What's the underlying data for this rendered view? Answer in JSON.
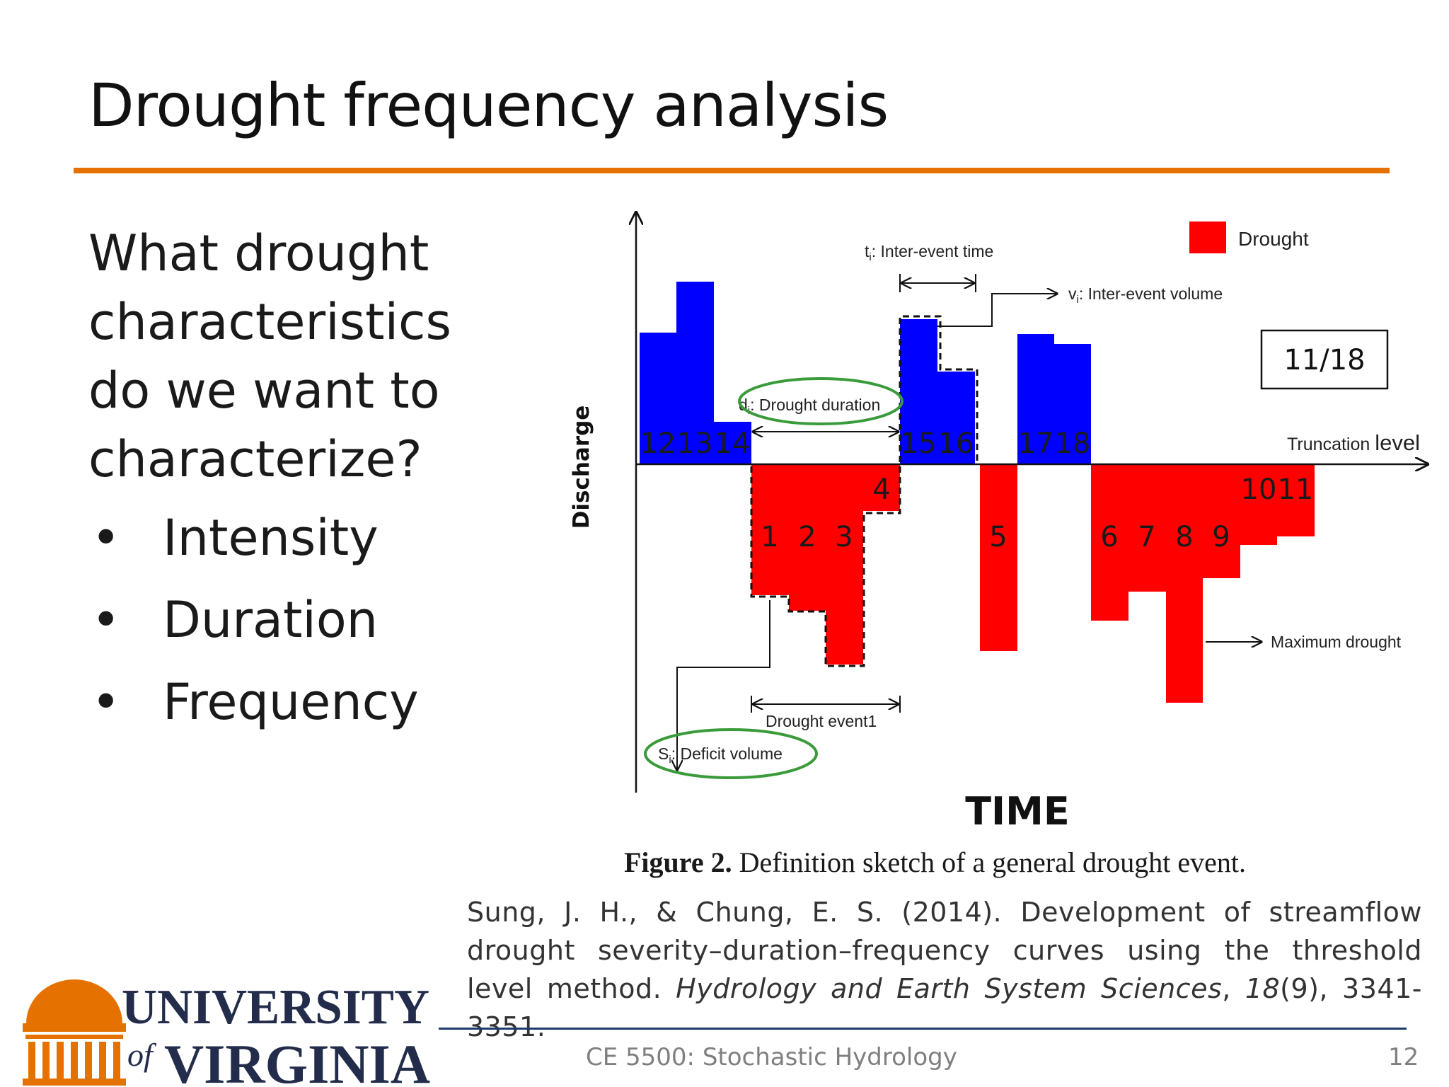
{
  "slide": {
    "title": "Drought frequency analysis",
    "accent_color": "#E57200",
    "question_lines": [
      "What drought",
      "characteristics",
      "do we want to",
      "characterize?"
    ],
    "bullet_glyph": "•",
    "bullets": [
      "Intensity",
      "Duration",
      "Frequency"
    ]
  },
  "figure": {
    "y_axis_label": "Discharge",
    "x_axis_label": "TIME",
    "legend": {
      "label": "Drought",
      "color": "#FF0000"
    },
    "surplus_color": "#0000FF",
    "deficit_color": "#FF0000",
    "ellipse_color": "#3A9B3A",
    "truncation_label_small": "Truncation ",
    "truncation_label_big": "level",
    "slide_badge": "11/18",
    "annotations": {
      "inter_event_time_sym": "t",
      "inter_event_time_sub": "i",
      "inter_event_time_text": ": Inter-event time",
      "inter_event_volume_sym": "v",
      "inter_event_volume_sub": "i",
      "inter_event_volume_text": ": Inter-event volume",
      "drought_duration_sym": "d",
      "drought_duration_sub": "i",
      "drought_duration_text": ": Drought duration",
      "deficit_volume_sym": "S",
      "deficit_volume_sub": "i",
      "deficit_volume_text": ": Deficit volume",
      "drought_event": "Drought event1",
      "maximum_drought": "Maximum drought"
    },
    "surplus_labels": [
      "12",
      "13",
      "14",
      "15",
      "16",
      "17",
      "18"
    ],
    "deficit_labels": [
      "1",
      "2",
      "3",
      "4",
      "5",
      "6",
      "7",
      "8",
      "9",
      "10",
      "11"
    ],
    "caption_bold": "Figure 2.",
    "caption_text": " Definition sketch of a general drought event."
  },
  "citation": {
    "authors_year_title": "Sung, J. H., & Chung, E. S. (2014). Development of streamflow drought severity–duration–frequency curves using the threshold level method. ",
    "journal": "Hydrology and Earth System Sciences",
    "sep1": ", ",
    "volume": "18",
    "issue_pages": "(9), 3341-3351."
  },
  "logo": {
    "university": "UNIVERSITY",
    "of": "of",
    "virginia": "VIRGINIA",
    "orange": "#E57200",
    "navy": "#232D4B"
  },
  "footer": {
    "course": "CE 5500: Stochastic Hydrology",
    "page_number": "12",
    "rule_color": "#1F3A6E"
  }
}
